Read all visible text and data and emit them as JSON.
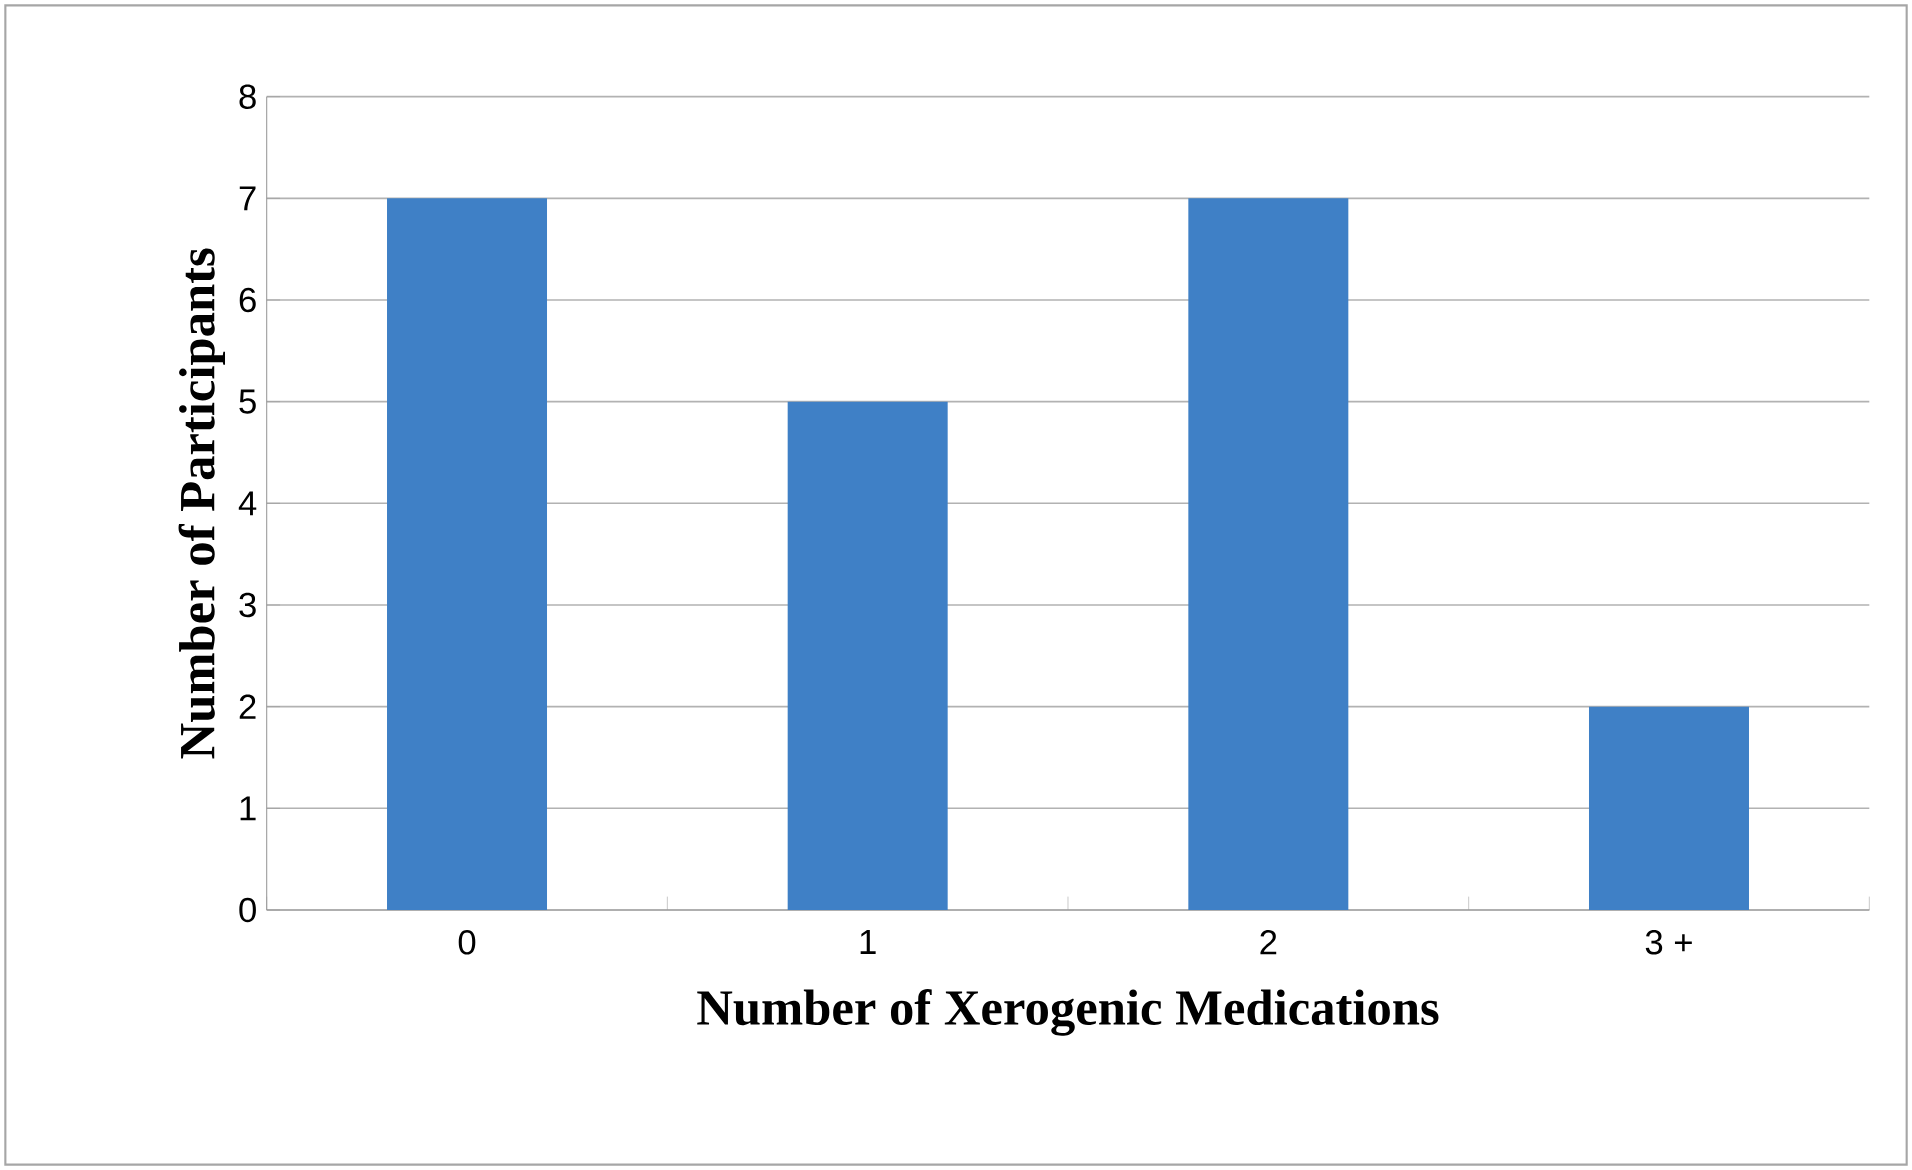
{
  "chart_data": {
    "type": "bar",
    "xlabel": "Number of Xerogenic Medications",
    "ylabel": "Number of Participants",
    "categories": [
      "0",
      "1",
      "2",
      "3 +"
    ],
    "values": [
      7,
      5,
      7,
      2
    ],
    "color": "#3f80c6",
    "ylim": [
      0,
      8
    ],
    "yticks": [
      0,
      1,
      2,
      3,
      4,
      5,
      6,
      7,
      8
    ],
    "grid": "y"
  }
}
